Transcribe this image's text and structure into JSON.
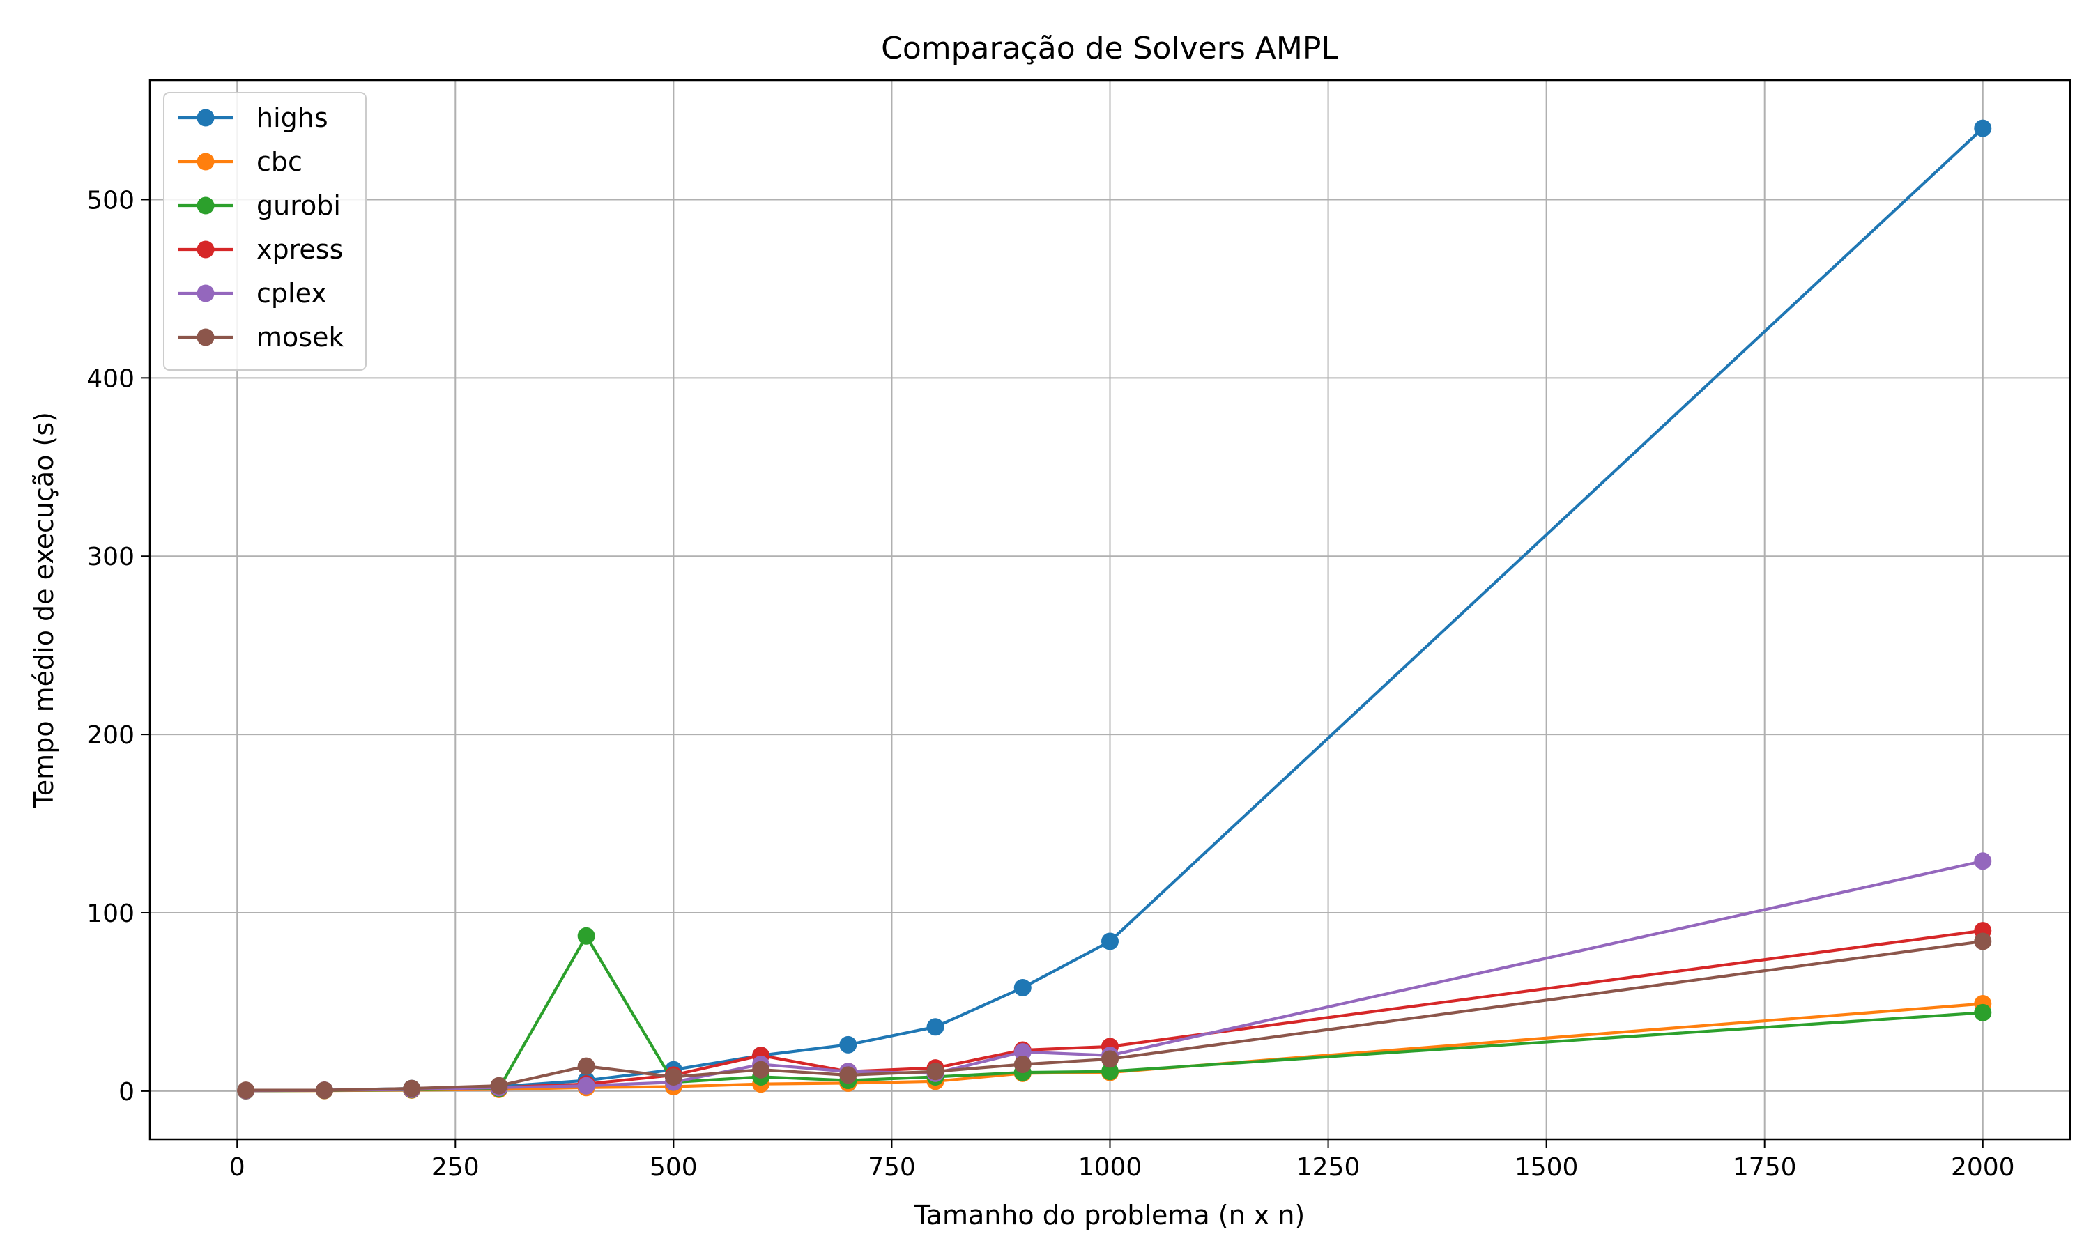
{
  "chart_data": {
    "type": "line",
    "title": "Comparação de Solvers AMPL",
    "xlabel": "Tamanho do problema (n x n)",
    "ylabel": "Tempo médio de execução (s)",
    "xlim": [
      -100,
      2100
    ],
    "ylim": [
      -27,
      567
    ],
    "xticks": [
      0,
      250,
      500,
      750,
      1000,
      1250,
      1500,
      1750,
      2000
    ],
    "yticks": [
      0,
      100,
      200,
      300,
      400,
      500
    ],
    "grid": true,
    "legend_position": "top-left",
    "x": [
      10,
      100,
      200,
      300,
      400,
      500,
      600,
      700,
      800,
      900,
      1000,
      2000
    ],
    "series": [
      {
        "name": "highs",
        "color": "#1f77b4",
        "values": [
          0.3,
          0.5,
          1.5,
          2.5,
          6,
          12,
          20,
          26,
          36,
          58,
          84,
          540
        ]
      },
      {
        "name": "cbc",
        "color": "#ff7f0e",
        "values": [
          0.2,
          0.3,
          0.6,
          1,
          2,
          2.5,
          4,
          4.5,
          5.5,
          10,
          10.5,
          49
        ]
      },
      {
        "name": "gurobi",
        "color": "#2ca02c",
        "values": [
          0.2,
          0.4,
          0.8,
          1.5,
          87,
          5,
          8,
          6,
          8,
          10.5,
          11,
          44
        ]
      },
      {
        "name": "xpress",
        "color": "#d62728",
        "values": [
          0.3,
          0.5,
          1,
          2,
          4,
          9,
          20,
          11,
          13,
          23,
          25,
          90
        ]
      },
      {
        "name": "cplex",
        "color": "#9467bd",
        "values": [
          0.3,
          0.5,
          1,
          2,
          3,
          5,
          15,
          11,
          10,
          22,
          20,
          129
        ]
      },
      {
        "name": "mosek",
        "color": "#8c564b",
        "values": [
          0.5,
          0.5,
          1.5,
          3,
          14,
          8,
          12,
          9,
          11,
          15,
          18,
          84
        ]
      }
    ]
  }
}
